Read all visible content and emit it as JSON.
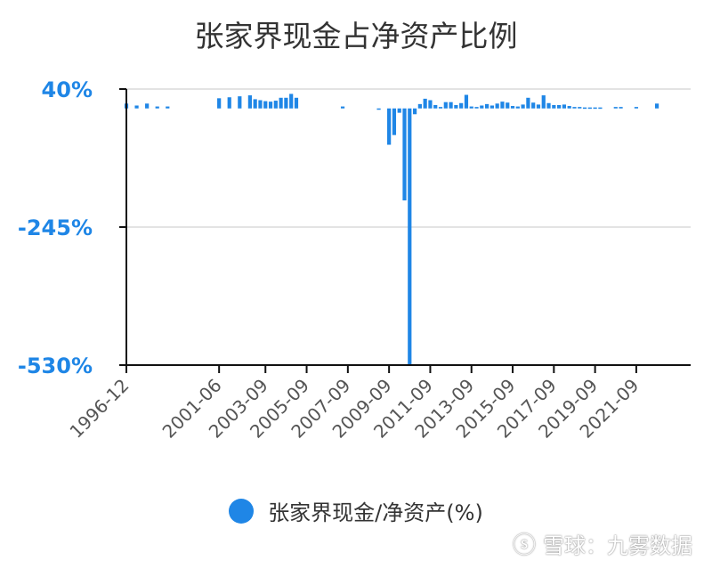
{
  "chart_data": {
    "type": "bar",
    "title": "张家界现金占净资产比例",
    "ylim": [
      -530,
      40
    ],
    "y_ticks": [
      "40%",
      "-245%",
      "-530%"
    ],
    "x_tick_labels": [
      "1996-12",
      "2001-06",
      "2003-09",
      "2005-09",
      "2007-09",
      "2009-09",
      "2011-09",
      "2013-09",
      "2015-09",
      "2017-09",
      "2019-09",
      "2021-09"
    ],
    "grid": "horizontal",
    "legend_position": "bottom",
    "series": [
      {
        "name": "张家界现金/净资产(%)",
        "color": "#1f86e6",
        "x": [
          "1996-12",
          "1997-06",
          "1997-12",
          "1998-06",
          "1998-12",
          "2001-06",
          "2001-12",
          "2002-06",
          "2002-12",
          "2003-03",
          "2003-06",
          "2003-09",
          "2003-12",
          "2004-03",
          "2004-06",
          "2004-09",
          "2004-12",
          "2005-03",
          "2007-06",
          "2009-03",
          "2009-09",
          "2009-12",
          "2010-03",
          "2010-06",
          "2010-09",
          "2010-12",
          "2011-03",
          "2011-06",
          "2011-09",
          "2011-12",
          "2012-03",
          "2012-06",
          "2012-09",
          "2012-12",
          "2013-03",
          "2013-06",
          "2013-09",
          "2013-12",
          "2014-03",
          "2014-06",
          "2014-09",
          "2014-12",
          "2015-03",
          "2015-06",
          "2015-09",
          "2015-12",
          "2016-03",
          "2016-06",
          "2016-09",
          "2016-12",
          "2017-03",
          "2017-06",
          "2017-09",
          "2017-12",
          "2018-03",
          "2018-06",
          "2018-09",
          "2018-12",
          "2019-03",
          "2019-06",
          "2019-09",
          "2019-12",
          "2020-09",
          "2020-12",
          "2021-09",
          "2022-09"
        ],
        "values": [
          10,
          6,
          10,
          4,
          4,
          21,
          23,
          25,
          27,
          19,
          17,
          15,
          14,
          16,
          22,
          22,
          30,
          22,
          4,
          -2,
          -75,
          -55,
          -9,
          -190,
          -530,
          -12,
          9,
          20,
          17,
          7,
          3,
          13,
          13,
          7,
          11,
          28,
          4,
          3,
          6,
          9,
          6,
          10,
          14,
          12,
          5,
          4,
          8,
          22,
          12,
          8,
          27,
          11,
          7,
          7,
          8,
          5,
          3,
          3,
          2,
          2,
          2,
          2,
          3,
          3,
          3,
          10
        ]
      }
    ]
  },
  "watermark": {
    "logo": "ⓢ",
    "text": "雪球：九雾数据"
  }
}
